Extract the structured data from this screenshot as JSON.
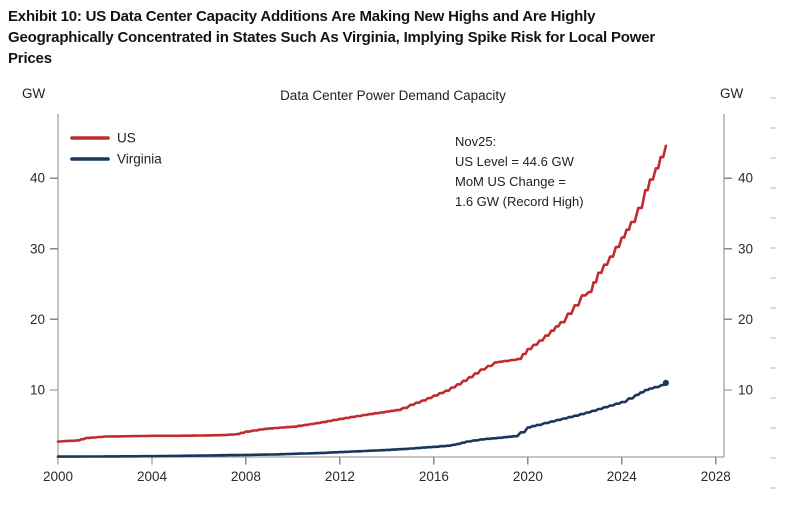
{
  "exhibit_title": {
    "lines": [
      "Exhibit 10: US Data Center Capacity Additions Are Making New Highs and Are Highly",
      "Geographically Concentrated in States Such As Virginia, Implying Spike Risk for Local Power",
      "Prices"
    ]
  },
  "chart_data": {
    "type": "line",
    "title": "Data Center Power Demand Capacity",
    "left_unit_label": "GW",
    "right_unit_label": "GW",
    "xlabel": "",
    "ylabel": "GW",
    "xlim": [
      2000,
      2028.35
    ],
    "ylim": [
      0.5,
      49.1
    ],
    "x_ticks": [
      2000,
      2004,
      2008,
      2012,
      2016,
      2020,
      2024,
      2028
    ],
    "y_ticks": [
      10,
      20,
      30,
      40
    ],
    "grid": false,
    "legend_position": "top-left-inside",
    "annotation": {
      "lines": [
        "Nov25:",
        "US Level = 44.6 GW",
        "MoM US Change =",
        "1.6 GW (Record High)"
      ]
    },
    "series": [
      {
        "name": "US",
        "color": "#c02b30",
        "points": [
          [
            2000,
            2.7
          ],
          [
            2000.8,
            2.85
          ],
          [
            2001.2,
            3.2
          ],
          [
            2002,
            3.4
          ],
          [
            2003,
            3.45
          ],
          [
            2004,
            3.5
          ],
          [
            2005,
            3.5
          ],
          [
            2006,
            3.55
          ],
          [
            2007,
            3.6
          ],
          [
            2007.6,
            3.75
          ],
          [
            2008,
            4.1
          ],
          [
            2008.6,
            4.4
          ],
          [
            2009,
            4.55
          ],
          [
            2010,
            4.8
          ],
          [
            2011,
            5.3
          ],
          [
            2012,
            5.9
          ],
          [
            2013,
            6.45
          ],
          [
            2014,
            6.95
          ],
          [
            2014.4,
            7.15
          ],
          [
            2014.7,
            7.45
          ],
          [
            2015,
            7.9
          ],
          [
            2015.5,
            8.5
          ],
          [
            2016,
            9.2
          ],
          [
            2016.5,
            9.9
          ],
          [
            2017,
            10.8
          ],
          [
            2017.5,
            11.8
          ],
          [
            2018,
            12.9
          ],
          [
            2018.6,
            13.9
          ],
          [
            2019,
            14.1
          ],
          [
            2019.6,
            14.4
          ],
          [
            2020,
            15.8
          ],
          [
            2020.5,
            17.0
          ],
          [
            2021,
            18.4
          ],
          [
            2021.4,
            19.6
          ],
          [
            2021.7,
            20.8
          ],
          [
            2022,
            22.0
          ],
          [
            2022.3,
            23.4
          ],
          [
            2022.6,
            23.9
          ],
          [
            2023,
            26.6
          ],
          [
            2023.5,
            28.9
          ],
          [
            2024,
            31.6
          ],
          [
            2024.4,
            33.8
          ],
          [
            2024.7,
            35.8
          ],
          [
            2025,
            38.3
          ],
          [
            2025.2,
            39.8
          ],
          [
            2025.45,
            41.4
          ],
          [
            2025.65,
            43.0
          ],
          [
            2025.875,
            44.6
          ]
        ]
      },
      {
        "name": "Virginia",
        "color": "#17375c",
        "end_dot": true,
        "points": [
          [
            2000,
            0.55
          ],
          [
            2002,
            0.58
          ],
          [
            2004,
            0.62
          ],
          [
            2006,
            0.7
          ],
          [
            2008,
            0.8
          ],
          [
            2009,
            0.85
          ],
          [
            2010,
            0.95
          ],
          [
            2011,
            1.05
          ],
          [
            2012,
            1.2
          ],
          [
            2013,
            1.35
          ],
          [
            2014,
            1.5
          ],
          [
            2015,
            1.7
          ],
          [
            2016,
            1.95
          ],
          [
            2016.6,
            2.1
          ],
          [
            2017,
            2.35
          ],
          [
            2017.4,
            2.7
          ],
          [
            2018,
            3.0
          ],
          [
            2018.5,
            3.15
          ],
          [
            2019,
            3.3
          ],
          [
            2019.4,
            3.45
          ],
          [
            2019.7,
            4.0
          ],
          [
            2020,
            4.7
          ],
          [
            2020.4,
            5.05
          ],
          [
            2021,
            5.55
          ],
          [
            2021.5,
            5.95
          ],
          [
            2022,
            6.35
          ],
          [
            2022.5,
            6.8
          ],
          [
            2023,
            7.3
          ],
          [
            2023.5,
            7.8
          ],
          [
            2024,
            8.3
          ],
          [
            2024.3,
            8.8
          ],
          [
            2024.6,
            9.3
          ],
          [
            2025,
            10.0
          ],
          [
            2025.4,
            10.4
          ],
          [
            2025.7,
            10.7
          ],
          [
            2025.875,
            11.0
          ]
        ]
      }
    ],
    "colors": {
      "axis": "#8a8a8a",
      "tick_label": "#2b2b2b",
      "edge_dash": "#d2d2d2"
    }
  }
}
